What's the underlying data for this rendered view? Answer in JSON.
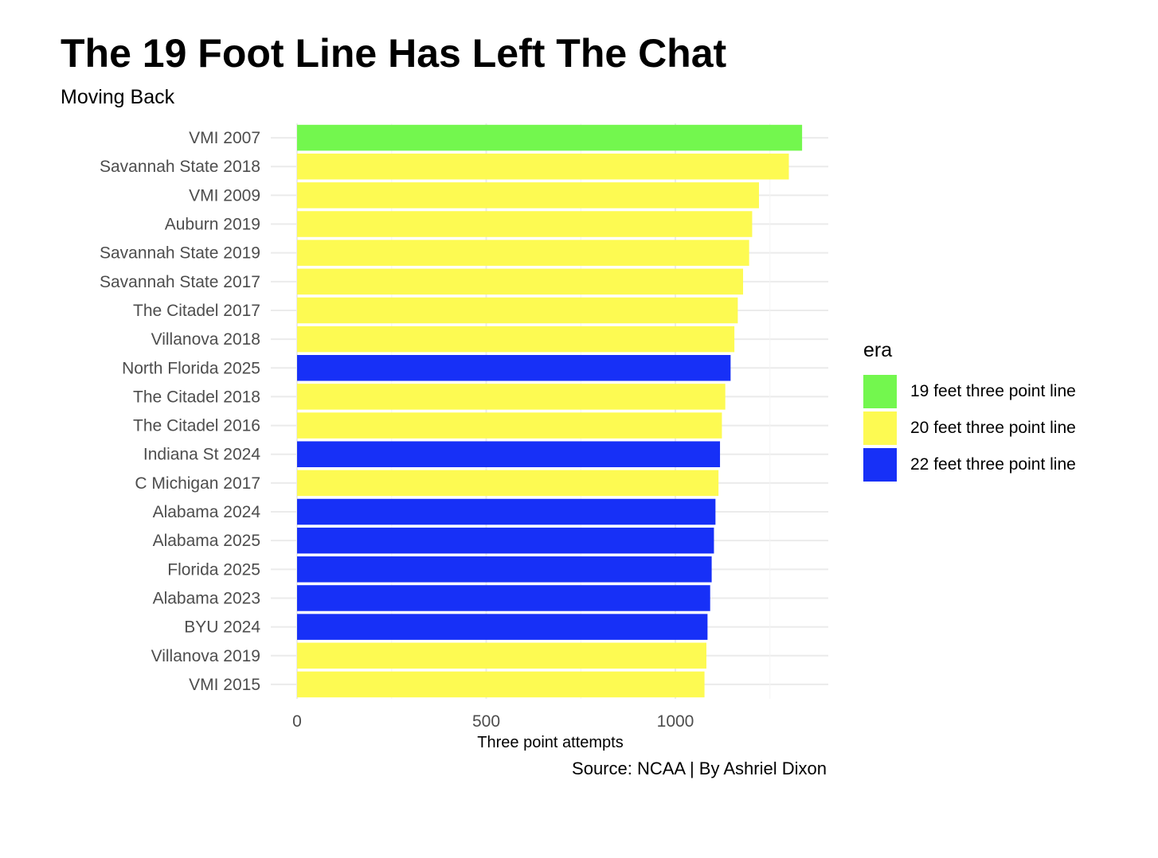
{
  "title": "The 19 Foot Line Has Left The Chat",
  "subtitle": "Moving Back",
  "caption": "Source: NCAA | By Ashriel Dixon",
  "legend": {
    "title": "era",
    "items": [
      {
        "label": "19 feet three point line",
        "color": "#73f74e"
      },
      {
        "label": "20 feet three point line",
        "color": "#fdfa52"
      },
      {
        "label": "22 feet three point line",
        "color": "#1730f7"
      }
    ]
  },
  "chart_data": {
    "type": "bar",
    "orientation": "horizontal",
    "title": "The 19 Foot Line Has Left The Chat",
    "subtitle": "Moving Back",
    "xlabel": "Three point attempts",
    "ylabel": "",
    "xlim": [
      0,
      1400
    ],
    "x_ticks": [
      0,
      500,
      1000
    ],
    "grid": true,
    "legend_position": "right",
    "categories": [
      "VMI 2007",
      "Savannah State 2018",
      "VMI 2009",
      "Auburn 2019",
      "Savannah State 2019",
      "Savannah State 2017",
      "The Citadel 2017",
      "Villanova 2018",
      "North Florida 2025",
      "The Citadel 2018",
      "The Citadel 2016",
      "Indiana St 2024",
      "C Michigan 2017",
      "Alabama 2024",
      "Alabama 2025",
      "Florida 2025",
      "Alabama 2023",
      "BYU 2024",
      "Villanova 2019",
      "VMI 2015"
    ],
    "values": [
      1335,
      1300,
      1221,
      1203,
      1195,
      1179,
      1165,
      1156,
      1146,
      1132,
      1123,
      1118,
      1114,
      1106,
      1102,
      1096,
      1092,
      1085,
      1082,
      1077
    ],
    "era": [
      "19 feet three point line",
      "20 feet three point line",
      "20 feet three point line",
      "20 feet three point line",
      "20 feet three point line",
      "20 feet three point line",
      "20 feet three point line",
      "20 feet three point line",
      "22 feet three point line",
      "20 feet three point line",
      "20 feet three point line",
      "22 feet three point line",
      "20 feet three point line",
      "22 feet three point line",
      "22 feet three point line",
      "22 feet three point line",
      "22 feet three point line",
      "22 feet three point line",
      "20 feet three point line",
      "20 feet three point line"
    ]
  }
}
